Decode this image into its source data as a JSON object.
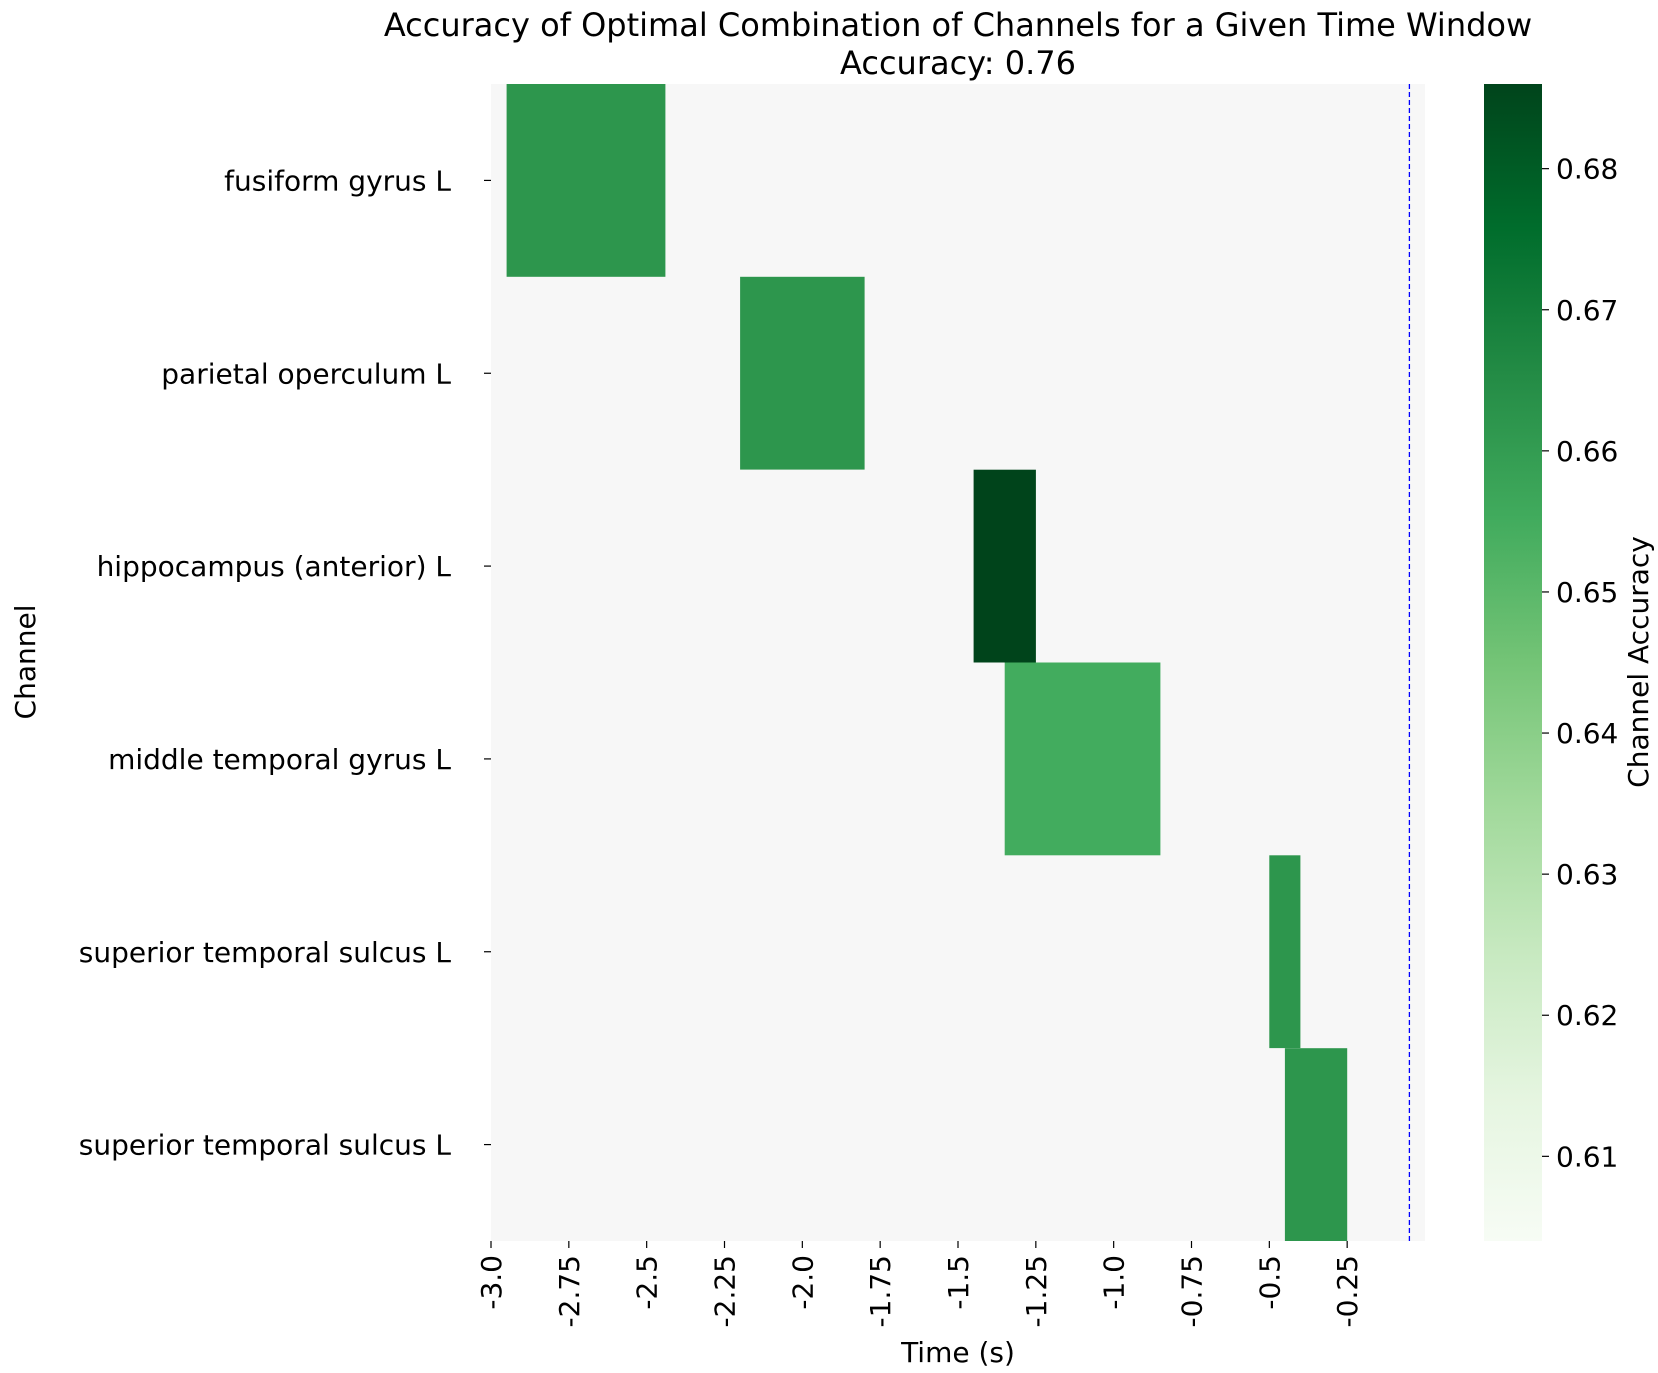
{
  "chart_data": {
    "type": "heatmap",
    "title": "Accuracy of Optimal Combination of Channels for a Given Time Window",
    "subtitle": "Accuracy: 0.76",
    "xlabel": "Time (s)",
    "ylabel": "Channel",
    "xlim": [
      -3.0,
      0.0
    ],
    "x_ticks": [
      -3.0,
      -2.75,
      -2.5,
      -2.25,
      -2.0,
      -1.75,
      -1.5,
      -1.25,
      -1.0,
      -0.75,
      -0.5,
      -0.25
    ],
    "x_tick_labels": [
      "-3.0",
      "-2.75",
      "-2.5",
      "-2.25",
      "-2.0",
      "-1.75",
      "-1.5",
      "-1.25",
      "-1.0",
      "-0.75",
      "-0.5",
      "-0.25"
    ],
    "channels": [
      "fusiform gyrus L",
      "parietal operculum L",
      "hippocampus (anterior) L",
      "middle temporal gyrus L",
      "superior temporal sulcus L",
      "superior temporal sulcus L"
    ],
    "cells": [
      {
        "row": 0,
        "start": -2.95,
        "end": -2.44,
        "value": 0.662
      },
      {
        "row": 1,
        "start": -2.2,
        "end": -1.8,
        "value": 0.662
      },
      {
        "row": 2,
        "start": -1.45,
        "end": -1.25,
        "value": 0.686
      },
      {
        "row": 3,
        "start": -1.35,
        "end": -0.85,
        "value": 0.655
      },
      {
        "row": 4,
        "start": -0.5,
        "end": -0.4,
        "value": 0.662
      },
      {
        "row": 5,
        "start": -0.45,
        "end": -0.25,
        "value": 0.662
      }
    ],
    "background_color": "#f7f7f7",
    "reference_line": {
      "x": -0.05,
      "color": "#0000ff",
      "style": "dashed"
    },
    "colorbar": {
      "label": "Channel Accuracy",
      "colormap": "Greens",
      "range": [
        0.604,
        0.686
      ],
      "ticks": [
        0.61,
        0.62,
        0.63,
        0.64,
        0.65,
        0.66,
        0.67,
        0.68
      ],
      "tick_labels": [
        "0.61",
        "0.62",
        "0.63",
        "0.64",
        "0.65",
        "0.66",
        "0.67",
        "0.68"
      ]
    },
    "grid": false
  }
}
